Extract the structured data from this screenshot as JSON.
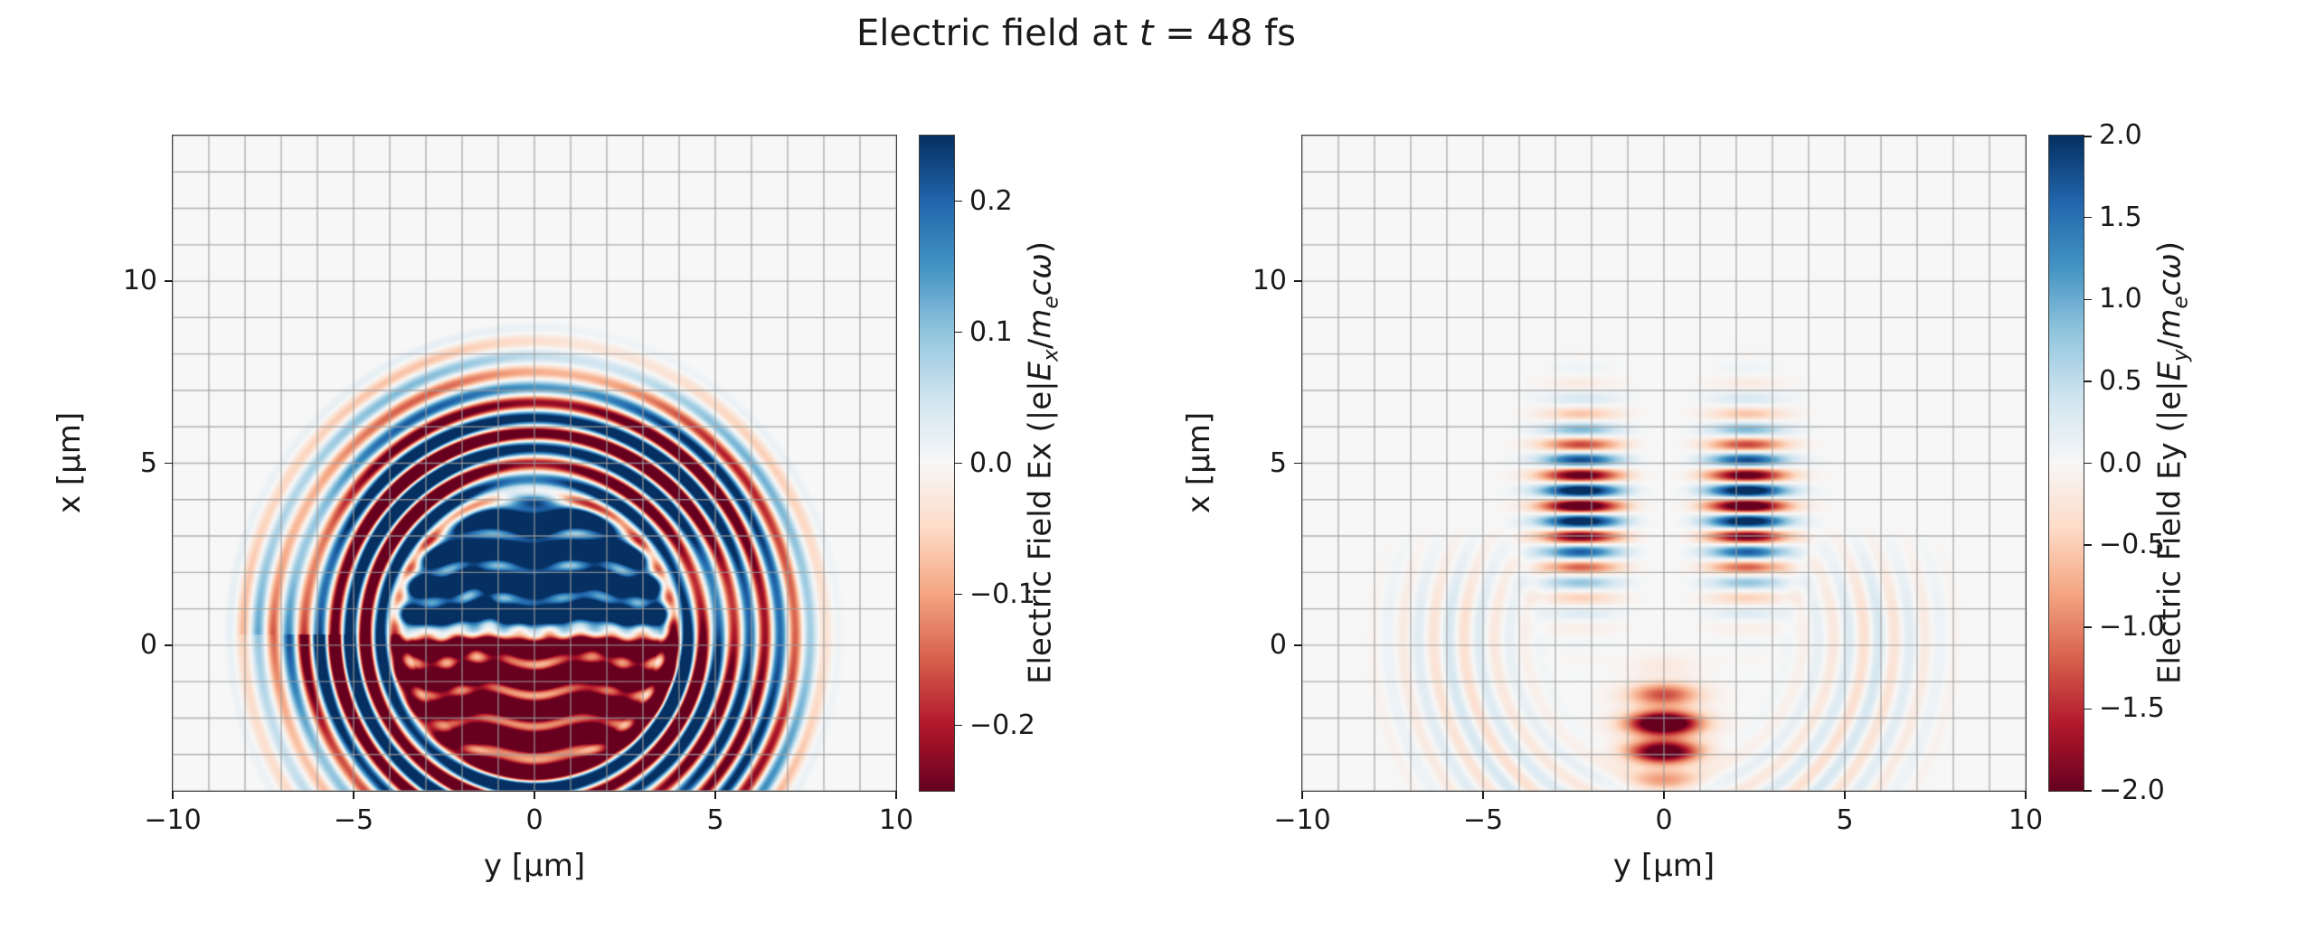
{
  "title": {
    "parts": [
      "Electric field at ",
      "t",
      " = 48 fs"
    ]
  },
  "colors": {
    "background": "#ffffff",
    "axes_bg": "#f0f0f0",
    "grid": "rgba(158,158,158,0.8)",
    "tick": "#1a1a1a",
    "text": "#1a1a1a",
    "colormap_rdbu": [
      [
        103,
        0,
        31
      ],
      [
        178,
        24,
        43
      ],
      [
        214,
        96,
        77
      ],
      [
        244,
        165,
        130
      ],
      [
        253,
        219,
        199
      ],
      [
        247,
        247,
        247
      ],
      [
        209,
        229,
        240
      ],
      [
        146,
        197,
        222
      ],
      [
        67,
        147,
        195
      ],
      [
        33,
        102,
        172
      ],
      [
        5,
        48,
        97
      ]
    ]
  },
  "chart_data": [
    {
      "type": "heatmap",
      "panel": "Ex",
      "xlabel": "y [μm]",
      "ylabel": "x [μm]",
      "xlim": [
        -10,
        10
      ],
      "ylim": [
        -4,
        14
      ],
      "xtick_values": [
        -10,
        -5,
        0,
        5,
        10
      ],
      "xtick_labels": [
        "−10",
        "−5",
        "0",
        "5",
        "10"
      ],
      "ytick_values": [
        0,
        5,
        10
      ],
      "ytick_labels": [
        "0",
        "5",
        "10"
      ],
      "grid_step": 1,
      "grid": true,
      "colormap": "RdBu",
      "colorbar": {
        "label_parts": [
          "Electric Field Ex (|e|",
          "E",
          "x",
          "/",
          "m",
          "e",
          "c",
          "ω",
          ")"
        ],
        "clim": [
          -0.25,
          0.25
        ],
        "tick_values": [
          0.2,
          0.1,
          0.0,
          -0.1,
          -0.2
        ],
        "tick_labels": [
          "0.2",
          "0.1",
          "0.0",
          "−0.1",
          "−0.2"
        ]
      },
      "pattern": {
        "kind": "radial_rings_dipole_core",
        "center": [
          0.0,
          0.3
        ],
        "wavelength": 0.85,
        "ring_amplitude": 0.5,
        "saturated_radius": 5.3,
        "outer_radius": 8.6,
        "core_radius": 4.1,
        "core_split_x": 0.35,
        "core_amplitude": 0.55
      }
    },
    {
      "type": "heatmap",
      "panel": "Ey",
      "xlabel": "y [μm]",
      "ylabel": "x [μm]",
      "xlim": [
        -10,
        10
      ],
      "ylim": [
        -4,
        14
      ],
      "xtick_values": [
        -10,
        -5,
        0,
        5,
        10
      ],
      "xtick_labels": [
        "−10",
        "−5",
        "0",
        "5",
        "10"
      ],
      "ytick_values": [
        0,
        5,
        10
      ],
      "ytick_labels": [
        "0",
        "5",
        "10"
      ],
      "grid_step": 1,
      "grid": true,
      "colormap": "RdBu",
      "colorbar": {
        "label_parts": [
          "Electric Field Ey (|e|",
          "E",
          "y",
          "/",
          "m",
          "e",
          "c",
          "ω",
          ")"
        ],
        "clim": [
          -2.0,
          2.0
        ],
        "tick_values": [
          2.0,
          1.5,
          1.0,
          0.5,
          0.0,
          -0.5,
          -1.0,
          -1.5,
          -2.0
        ],
        "tick_labels": [
          "2.0",
          "1.5",
          "1.0",
          "0.5",
          "0.0",
          "−0.5",
          "−1.0",
          "−1.5",
          "−2.0"
        ]
      },
      "pattern": {
        "kind": "stripe_lobes_blob_rings",
        "wavelength": 0.85,
        "lobe_abs_y": 2.3,
        "lobe_sigma_y": 1.05,
        "lobe_center_x": 3.9,
        "lobe_sigma_x": 2.0,
        "lobe_amplitude": 2.6,
        "gap_halfwidth": 0.85,
        "blob_center": [
          0.0,
          -2.4
        ],
        "blob_sigma_y": 0.95,
        "blob_sigma_x": 1.15,
        "blob_amplitude": -2.2,
        "ring_amplitude": 0.35,
        "ring_center_radius": 5.8,
        "ring_halfwidth": 2.8
      }
    }
  ]
}
